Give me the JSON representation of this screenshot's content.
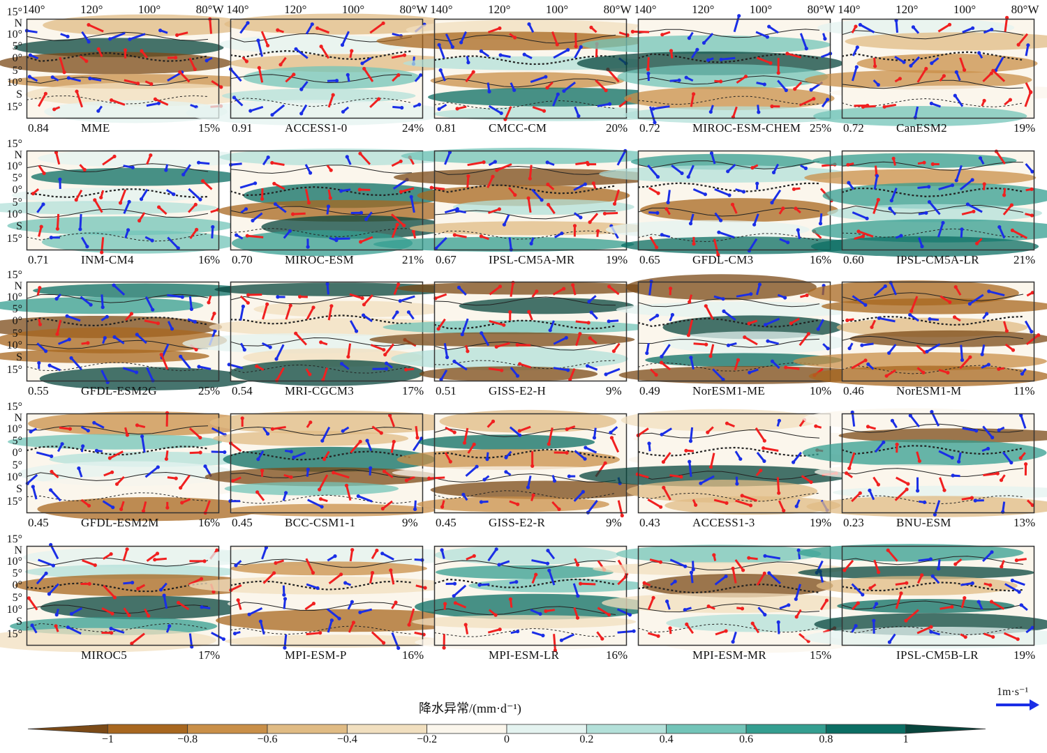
{
  "lon_labels": [
    "140°",
    "120°",
    "100°",
    "80°W"
  ],
  "lat_labels": [
    "15°",
    "N",
    "10°",
    "5°",
    "0°",
    "5°",
    "10°",
    "S",
    "15°"
  ],
  "panels": [
    {
      "model": "MME",
      "score": "0.84",
      "percent": "15%"
    },
    {
      "model": "ACCESS1-0",
      "score": "0.91",
      "percent": "24%"
    },
    {
      "model": "CMCC-CM",
      "score": "0.81",
      "percent": "20%"
    },
    {
      "model": "MIROC-ESM-CHEM",
      "score": "0.72",
      "percent": "25%"
    },
    {
      "model": "CanESM2",
      "score": "0.72",
      "percent": "19%"
    },
    {
      "model": "INM-CM4",
      "score": "0.71",
      "percent": "16%"
    },
    {
      "model": "MIROC-ESM",
      "score": "0.70",
      "percent": "21%"
    },
    {
      "model": "IPSL-CM5A-MR",
      "score": "0.67",
      "percent": "19%"
    },
    {
      "model": "GFDL-CM3",
      "score": "0.65",
      "percent": "16%"
    },
    {
      "model": "IPSL-CM5A-LR",
      "score": "0.60",
      "percent": "21%"
    },
    {
      "model": "GFDL-ESM2G",
      "score": "0.55",
      "percent": "25%"
    },
    {
      "model": "MRI-CGCM3",
      "score": "0.54",
      "percent": "17%"
    },
    {
      "model": "GISS-E2-H",
      "score": "0.51",
      "percent": "9%"
    },
    {
      "model": "NorESM1-ME",
      "score": "0.49",
      "percent": "10%"
    },
    {
      "model": "NorESM1-M",
      "score": "0.46",
      "percent": "11%"
    },
    {
      "model": "GFDL-ESM2M",
      "score": "0.45",
      "percent": "16%"
    },
    {
      "model": "BCC-CSM1-1",
      "score": "0.45",
      "percent": "9%"
    },
    {
      "model": "GISS-E2-R",
      "score": "0.45",
      "percent": "9%"
    },
    {
      "model": "ACCESS1-3",
      "score": "0.43",
      "percent": "19%"
    },
    {
      "model": "BNU-ESM",
      "score": "0.23",
      "percent": "13%"
    },
    {
      "model": "MIROC5",
      "score": "",
      "percent": "17%"
    },
    {
      "model": "MPI-ESM-P",
      "score": "",
      "percent": "16%"
    },
    {
      "model": "MPI-ESM-LR",
      "score": "",
      "percent": "16%"
    },
    {
      "model": "MPI-ESM-MR",
      "score": "",
      "percent": "15%"
    },
    {
      "model": "IPSL-CM5B-LR",
      "score": "",
      "percent": "19%"
    }
  ],
  "colorbar": {
    "title": "降水异常/(mm·d⁻¹)",
    "ticks": [
      "−1",
      "−0.8",
      "−0.6",
      "−0.4",
      "−0.2",
      "0",
      "0.2",
      "0.4",
      "0.6",
      "0.8",
      "1"
    ],
    "colors": [
      "#7b4a17",
      "#a8671f",
      "#c98f48",
      "#e0bb84",
      "#f1dfbf",
      "#fbf6ec",
      "#e4f3f0",
      "#b3e0d9",
      "#73c4b8",
      "#349e90",
      "#0b6e63",
      "#08453d"
    ]
  },
  "arrow_colors": {
    "positive": "#f02020",
    "negative": "#1a2ee6"
  },
  "scale_arrow": {
    "label": "1m·s⁻¹",
    "color": "#1a2ee6"
  }
}
